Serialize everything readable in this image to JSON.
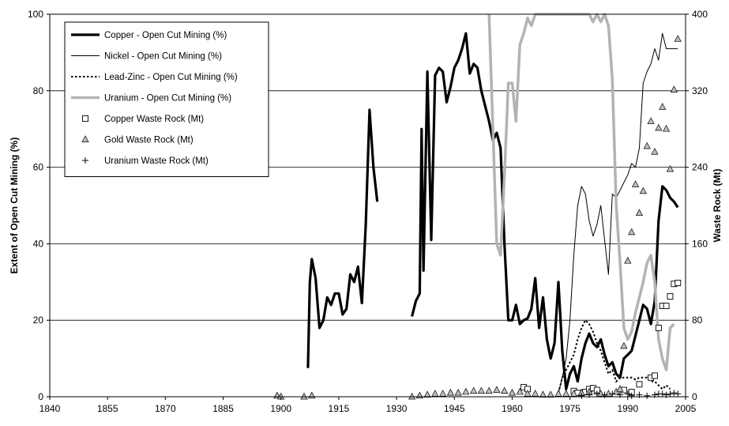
{
  "chart_data": {
    "type": "line",
    "title": "",
    "xlabel": "",
    "ylabel": "Extent of Open Cut Mining (%)",
    "y2label": "Waste Rock (Mt)",
    "xlim": [
      1840,
      2005
    ],
    "ylim": [
      0,
      100
    ],
    "y2lim": [
      0,
      400
    ],
    "xticks": [
      "1840",
      "1855",
      "1870",
      "1885",
      "1900",
      "1915",
      "1930",
      "1945",
      "1960",
      "1975",
      "1990",
      "2005"
    ],
    "yticks": [
      "0",
      "20",
      "40",
      "60",
      "80",
      "100"
    ],
    "y2ticks": [
      "0",
      "80",
      "160",
      "240",
      "320",
      "400"
    ],
    "grid": "horizontal",
    "legend_position": "top-left",
    "series": [
      {
        "name": "Copper - Open Cut Mining (%)",
        "axis": "left",
        "style": "thick-black",
        "segments": [
          [
            [
              1907,
              7.5
            ],
            [
              1907.5,
              30
            ],
            [
              1908,
              36
            ],
            [
              1909,
              31
            ],
            [
              1910,
              18
            ],
            [
              1911,
              20
            ],
            [
              1912,
              26
            ],
            [
              1913,
              24
            ],
            [
              1914,
              27
            ],
            [
              1915,
              27
            ],
            [
              1916,
              21.5
            ],
            [
              1917,
              23
            ],
            [
              1918,
              32
            ],
            [
              1919,
              30
            ],
            [
              1920,
              34
            ],
            [
              1921,
              24.5
            ],
            [
              1922,
              45
            ],
            [
              1923,
              75
            ],
            [
              1924,
              60
            ],
            [
              1925,
              51
            ]
          ],
          [
            [
              1934,
              21
            ],
            [
              1935,
              25
            ],
            [
              1936,
              27
            ],
            [
              1936.5,
              70
            ],
            [
              1937,
              33
            ],
            [
              1938,
              85
            ],
            [
              1939,
              41
            ],
            [
              1940,
              84
            ],
            [
              1941,
              86
            ],
            [
              1942,
              85
            ],
            [
              1943,
              77
            ],
            [
              1944,
              81
            ],
            [
              1945,
              86
            ],
            [
              1946,
              88
            ],
            [
              1947,
              91
            ],
            [
              1948,
              95
            ],
            [
              1949,
              84.5
            ],
            [
              1950,
              87
            ],
            [
              1951,
              86
            ],
            [
              1952,
              80
            ],
            [
              1953,
              76
            ],
            [
              1954,
              72
            ],
            [
              1955,
              67
            ],
            [
              1956,
              69
            ],
            [
              1957,
              65
            ],
            [
              1958,
              40
            ],
            [
              1959,
              20
            ],
            [
              1960,
              20
            ],
            [
              1961,
              24
            ],
            [
              1962,
              19
            ],
            [
              1963,
              20
            ],
            [
              1964,
              20.5
            ],
            [
              1965,
              23
            ],
            [
              1966,
              31
            ],
            [
              1967,
              18
            ],
            [
              1968,
              26
            ],
            [
              1969,
              15
            ],
            [
              1970,
              10
            ],
            [
              1971,
              14
            ],
            [
              1972,
              30
            ],
            [
              1973,
              12
            ],
            [
              1974,
              2
            ],
            [
              1975,
              6
            ],
            [
              1976,
              8
            ],
            [
              1977,
              4
            ],
            [
              1978,
              10
            ],
            [
              1979,
              14
            ],
            [
              1980,
              16.5
            ],
            [
              1981,
              14
            ],
            [
              1982,
              13
            ],
            [
              1983,
              15
            ],
            [
              1984,
              11
            ],
            [
              1985,
              8
            ],
            [
              1986,
              9
            ],
            [
              1987,
              6
            ],
            [
              1988,
              5
            ],
            [
              1989,
              10
            ],
            [
              1990,
              11
            ],
            [
              1991,
              12
            ],
            [
              1992,
              16
            ],
            [
              1993,
              20
            ],
            [
              1994,
              24
            ],
            [
              1995,
              23
            ],
            [
              1996,
              19
            ],
            [
              1997,
              25
            ],
            [
              1998,
              46
            ],
            [
              1999,
              55
            ],
            [
              2000,
              54
            ],
            [
              2001,
              52
            ],
            [
              2002,
              51
            ],
            [
              2003,
              49.5
            ]
          ]
        ]
      },
      {
        "name": "Nickel - Open Cut Mining (%)",
        "axis": "left",
        "style": "thin-black",
        "segments": [
          [
            [
              1972,
              1
            ],
            [
              1973,
              5
            ],
            [
              1974,
              10
            ],
            [
              1975,
              20
            ],
            [
              1976,
              37
            ],
            [
              1977,
              50
            ],
            [
              1978,
              55
            ],
            [
              1979,
              53
            ],
            [
              1980,
              46
            ],
            [
              1981,
              42
            ],
            [
              1982,
              45
            ],
            [
              1983,
              50
            ],
            [
              1984,
              41
            ],
            [
              1985,
              32
            ],
            [
              1986,
              53
            ],
            [
              1987,
              52
            ],
            [
              1988,
              54
            ],
            [
              1989,
              56
            ],
            [
              1990,
              58
            ],
            [
              1991,
              61
            ],
            [
              1992,
              60
            ],
            [
              1993,
              65
            ],
            [
              1994,
              82
            ],
            [
              1995,
              85
            ],
            [
              1996,
              87
            ],
            [
              1997,
              91
            ],
            [
              1998,
              88
            ],
            [
              1999,
              95
            ],
            [
              2000,
              91
            ],
            [
              2001,
              91
            ],
            [
              2002,
              91
            ],
            [
              2003,
              91
            ]
          ]
        ]
      },
      {
        "name": "Lead-Zinc - Open Cut Mining (%)",
        "axis": "left",
        "style": "dotted-black",
        "segments": [
          [
            [
              1972,
              1
            ],
            [
              1973,
              5
            ],
            [
              1974,
              7
            ],
            [
              1975,
              9
            ],
            [
              1976,
              11
            ],
            [
              1977,
              15
            ],
            [
              1978,
              18
            ],
            [
              1979,
              20
            ],
            [
              1980,
              19
            ],
            [
              1981,
              17
            ],
            [
              1982,
              14
            ],
            [
              1983,
              12
            ],
            [
              1984,
              9
            ],
            [
              1985,
              6
            ],
            [
              1986,
              7
            ],
            [
              1987,
              4
            ],
            [
              1988,
              5
            ],
            [
              1989,
              5
            ],
            [
              1990,
              5
            ],
            [
              1991,
              5
            ],
            [
              1992,
              4.5
            ],
            [
              1993,
              5
            ],
            [
              1994,
              5
            ],
            [
              1995,
              5
            ],
            [
              1996,
              4
            ],
            [
              1997,
              4
            ],
            [
              1998,
              3
            ],
            [
              1999,
              2
            ],
            [
              2000,
              3
            ],
            [
              2001,
              2
            ]
          ]
        ]
      },
      {
        "name": "Uranium - Open Cut Mining (%)",
        "axis": "left",
        "style": "thick-gray",
        "segments": [
          [
            [
              1954,
              100
            ],
            [
              1955,
              70
            ],
            [
              1956,
              40
            ],
            [
              1957,
              37
            ],
            [
              1958,
              58
            ],
            [
              1959,
              82
            ],
            [
              1960,
              82
            ],
            [
              1961,
              72
            ],
            [
              1962,
              92
            ],
            [
              1963,
              95
            ],
            [
              1964,
              99
            ],
            [
              1965,
              97
            ],
            [
              1966,
              100
            ],
            [
              1967,
              100
            ],
            [
              1980,
              100
            ],
            [
              1981,
              98
            ],
            [
              1982,
              100
            ],
            [
              1983,
              98
            ],
            [
              1984,
              100
            ],
            [
              1985,
              97
            ],
            [
              1986,
              83
            ],
            [
              1987,
              50
            ],
            [
              1988,
              35
            ],
            [
              1989,
              18
            ],
            [
              1990,
              15
            ],
            [
              1991,
              17
            ],
            [
              1992,
              22
            ],
            [
              1993,
              26
            ],
            [
              1994,
              30
            ],
            [
              1995,
              35
            ],
            [
              1996,
              37
            ],
            [
              1997,
              30
            ],
            [
              1998,
              15
            ],
            [
              1999,
              10
            ],
            [
              2000,
              7
            ],
            [
              2001,
              18
            ],
            [
              2002,
              19
            ]
          ]
        ]
      },
      {
        "name": "Copper Waste Rock (Mt)",
        "axis": "right",
        "marker": "square",
        "points": [
          [
            1963,
            10
          ],
          [
            1964,
            8
          ],
          [
            1976,
            6
          ],
          [
            1977,
            4
          ],
          [
            1979,
            5
          ],
          [
            1980,
            8
          ],
          [
            1981,
            9
          ],
          [
            1982,
            7
          ],
          [
            1989,
            7
          ],
          [
            1991,
            5
          ],
          [
            1993,
            13
          ],
          [
            1996,
            20
          ],
          [
            1997,
            22
          ],
          [
            1998,
            72
          ],
          [
            1999,
            95
          ],
          [
            2000,
            95
          ],
          [
            2001,
            105
          ],
          [
            2002,
            118
          ],
          [
            2003,
            119
          ]
        ]
      },
      {
        "name": "Gold Waste Rock (Mt)",
        "axis": "right",
        "marker": "triangle",
        "points": [
          [
            1899,
            1
          ],
          [
            1900,
            0
          ],
          [
            1906,
            0
          ],
          [
            1908,
            1
          ],
          [
            1934,
            0
          ],
          [
            1936,
            1
          ],
          [
            1938,
            2
          ],
          [
            1940,
            3
          ],
          [
            1942,
            3
          ],
          [
            1944,
            4
          ],
          [
            1946,
            4
          ],
          [
            1948,
            5
          ],
          [
            1950,
            6
          ],
          [
            1952,
            6
          ],
          [
            1954,
            6
          ],
          [
            1956,
            7
          ],
          [
            1958,
            6
          ],
          [
            1960,
            4
          ],
          [
            1962,
            5
          ],
          [
            1964,
            3
          ],
          [
            1966,
            3
          ],
          [
            1968,
            2
          ],
          [
            1970,
            2
          ],
          [
            1972,
            3
          ],
          [
            1974,
            3
          ],
          [
            1976,
            3
          ],
          [
            1978,
            4
          ],
          [
            1980,
            5
          ],
          [
            1983,
            3
          ],
          [
            1985,
            3
          ],
          [
            1987,
            5
          ],
          [
            1988,
            8
          ],
          [
            1989,
            53
          ],
          [
            1990,
            142
          ],
          [
            1991,
            172
          ],
          [
            1992,
            222
          ],
          [
            1993,
            192
          ],
          [
            1994,
            215
          ],
          [
            1995,
            262
          ],
          [
            1996,
            288
          ],
          [
            1997,
            256
          ],
          [
            1998,
            281
          ],
          [
            1999,
            303
          ],
          [
            2000,
            280
          ],
          [
            2001,
            238
          ],
          [
            2002,
            321
          ],
          [
            2003,
            374
          ]
        ]
      },
      {
        "name": "Uranium Waste Rock (Mt)",
        "axis": "right",
        "marker": "plus",
        "points": [
          [
            1978,
            1
          ],
          [
            1980,
            2
          ],
          [
            1982,
            3
          ],
          [
            1984,
            2
          ],
          [
            1986,
            3
          ],
          [
            1988,
            2
          ],
          [
            1990,
            3
          ],
          [
            1991,
            1
          ],
          [
            1993,
            2
          ],
          [
            1995,
            1
          ],
          [
            1997,
            2
          ],
          [
            1998,
            3
          ],
          [
            1999,
            3
          ],
          [
            2000,
            2
          ],
          [
            2001,
            3
          ],
          [
            2002,
            4
          ],
          [
            2003,
            3
          ]
        ]
      }
    ]
  }
}
